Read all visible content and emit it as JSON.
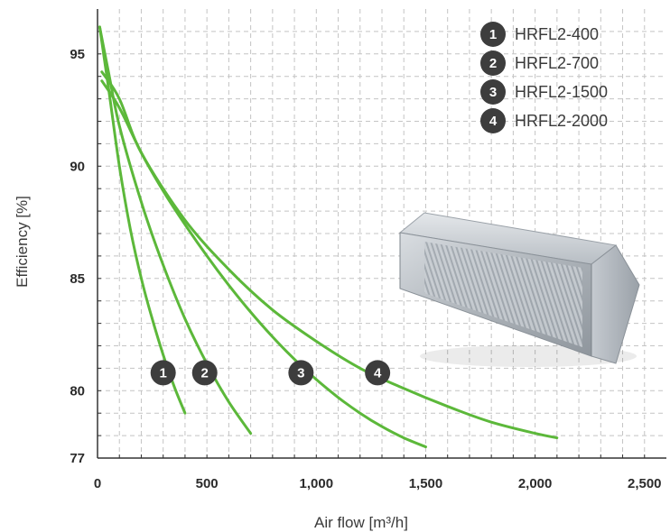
{
  "chart_data": {
    "type": "line",
    "title": "",
    "xlabel": "Air flow [m³/h]",
    "ylabel": "Efficiency [%]",
    "xlim": [
      0,
      2600
    ],
    "ylim": [
      77,
      97
    ],
    "x_ticks": [
      {
        "value": 0,
        "label": "0"
      },
      {
        "value": 500,
        "label": "500"
      },
      {
        "value": 1000,
        "label": "1,000"
      },
      {
        "value": 1500,
        "label": "1,500"
      },
      {
        "value": 2000,
        "label": "2,000"
      },
      {
        "value": 2500,
        "label": "2,500"
      }
    ],
    "y_ticks": [
      {
        "value": 77,
        "label": "77"
      },
      {
        "value": 80,
        "label": "80"
      },
      {
        "value": 85,
        "label": "85"
      },
      {
        "value": 90,
        "label": "90"
      },
      {
        "value": 95,
        "label": "95"
      }
    ],
    "grid": true,
    "legend_position": "top-right",
    "line_color": "#5cb83a",
    "badge_color": "#3d3d3d",
    "series": [
      {
        "name": "HRFL2-400",
        "badge": "1",
        "label_at": [
          300,
          80.8
        ],
        "points": [
          [
            10,
            96.2
          ],
          [
            50,
            93.5
          ],
          [
            100,
            90.0
          ],
          [
            150,
            87.2
          ],
          [
            200,
            85.0
          ],
          [
            250,
            83.2
          ],
          [
            300,
            81.6
          ],
          [
            350,
            80.2
          ],
          [
            400,
            79.0
          ]
        ]
      },
      {
        "name": "HRFL2-700",
        "badge": "2",
        "label_at": [
          490,
          80.8
        ],
        "points": [
          [
            10,
            96.2
          ],
          [
            50,
            94.2
          ],
          [
            100,
            91.8
          ],
          [
            200,
            88.4
          ],
          [
            300,
            85.6
          ],
          [
            400,
            83.2
          ],
          [
            500,
            81.2
          ],
          [
            600,
            79.5
          ],
          [
            700,
            78.1
          ]
        ]
      },
      {
        "name": "HRFL2-1500",
        "badge": "3",
        "label_at": [
          930,
          80.8
        ],
        "points": [
          [
            20,
            93.8
          ],
          [
            100,
            92.6
          ],
          [
            200,
            90.6
          ],
          [
            300,
            88.9
          ],
          [
            400,
            87.4
          ],
          [
            500,
            86.0
          ],
          [
            600,
            84.7
          ],
          [
            700,
            83.5
          ],
          [
            800,
            82.4
          ],
          [
            900,
            81.4
          ],
          [
            1000,
            80.5
          ],
          [
            1100,
            79.7
          ],
          [
            1200,
            79.0
          ],
          [
            1300,
            78.4
          ],
          [
            1400,
            77.9
          ],
          [
            1500,
            77.5
          ]
        ]
      },
      {
        "name": "HRFL2-2000",
        "badge": "4",
        "label_at": [
          1280,
          80.8
        ],
        "points": [
          [
            20,
            94.2
          ],
          [
            100,
            93.0
          ],
          [
            200,
            90.6
          ],
          [
            400,
            87.6
          ],
          [
            600,
            85.4
          ],
          [
            800,
            83.6
          ],
          [
            1000,
            82.2
          ],
          [
            1200,
            81.0
          ],
          [
            1400,
            80.1
          ],
          [
            1600,
            79.3
          ],
          [
            1800,
            78.6
          ],
          [
            2000,
            78.1
          ],
          [
            2100,
            77.9
          ]
        ]
      }
    ]
  }
}
